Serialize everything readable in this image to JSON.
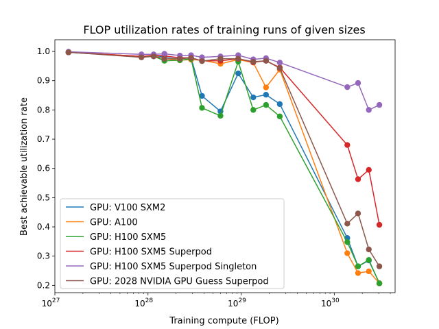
{
  "chart_data": {
    "type": "line",
    "title": "FLOP utilization rates of training runs of given sizes",
    "xlabel": "Training compute (FLOP)",
    "ylabel": "Best achievable utilization rate",
    "x_scale": "log",
    "xlim": [
      1e+27,
      4.5e+30
    ],
    "ylim": [
      0.175,
      1.04
    ],
    "x_ticks": [
      {
        "value": 1e+27,
        "label": "10",
        "exp": "27"
      },
      {
        "value": 1e+28,
        "label": "10",
        "exp": "28"
      },
      {
        "value": 1e+29,
        "label": "10",
        "exp": "29"
      },
      {
        "value": 1e+30,
        "label": "10",
        "exp": "30"
      }
    ],
    "y_ticks": [
      0.2,
      0.3,
      0.4,
      0.5,
      0.6,
      0.7,
      0.8,
      0.9,
      1.0
    ],
    "legend_position": "lower-left",
    "x": [
      1.4e+27,
      8.5e+27,
      1.15e+28,
      1.5e+28,
      2.2e+28,
      2.9e+28,
      3.8e+28,
      6e+28,
      9.3e+28,
      1.35e+29,
      1.85e+29,
      2.6e+29,
      1.38e+30,
      1.8e+30,
      2.35e+30,
      3.05e+30
    ],
    "series": [
      {
        "name": "GPU: V100 SXM2",
        "color": "#1f77b4",
        "values": [
          0.997,
          0.983,
          0.985,
          0.982,
          0.978,
          0.978,
          0.848,
          0.795,
          0.925,
          0.843,
          0.852,
          0.82,
          0.362,
          0.265,
          0.285,
          0.207
        ]
      },
      {
        "name": "GPU: A100",
        "color": "#ff7f0e",
        "values": [
          0.997,
          0.983,
          0.985,
          0.975,
          0.97,
          0.972,
          0.97,
          0.958,
          0.972,
          0.962,
          0.877,
          0.938,
          0.31,
          0.242,
          0.248,
          0.207
        ]
      },
      {
        "name": "GPU: H100 SXM5",
        "color": "#2ca02c",
        "values": [
          0.997,
          0.982,
          0.984,
          0.968,
          0.97,
          0.975,
          0.807,
          0.78,
          0.965,
          0.8,
          0.817,
          0.778,
          0.348,
          0.265,
          0.287,
          0.207
        ]
      },
      {
        "name": "GPU: H100 SXM5 Superpod",
        "color": "#d62728",
        "values": [
          0.997,
          0.983,
          0.987,
          0.985,
          0.978,
          0.978,
          0.968,
          0.968,
          0.975,
          0.963,
          0.968,
          0.945,
          0.68,
          0.563,
          0.595,
          0.407
        ]
      },
      {
        "name": "GPU: H100 SXM5 Superpod Singleton",
        "color": "#9467bd",
        "values": [
          0.999,
          0.99,
          0.99,
          0.992,
          0.986,
          0.987,
          0.98,
          0.983,
          0.987,
          0.973,
          0.977,
          0.962,
          0.878,
          0.892,
          0.8,
          0.817
        ]
      },
      {
        "name": "GPU: 2028 NVIDIA GPU Guess Superpod",
        "color": "#8c564b",
        "values": [
          0.997,
          0.98,
          0.983,
          0.975,
          0.975,
          0.978,
          0.967,
          0.975,
          0.975,
          0.965,
          0.968,
          0.943,
          0.411,
          0.446,
          0.323,
          0.265
        ]
      }
    ]
  }
}
